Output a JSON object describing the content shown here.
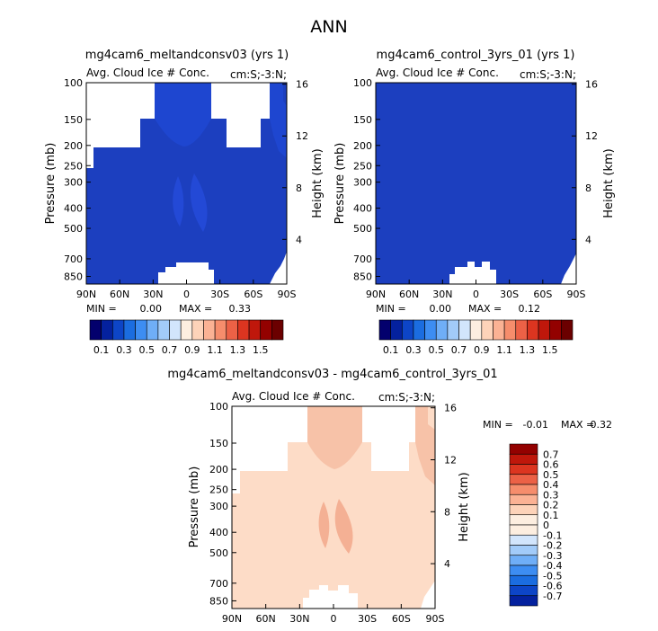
{
  "title": "ANN",
  "colors": {
    "deep_blue": "#1c3fbf",
    "blue_mid": "#1a30a8",
    "peach": "#fddcc7",
    "salmon": "#f7b49a"
  },
  "chart_data": [
    {
      "type": "heatmap",
      "title": "mg4cam6_meltandconsv03 (yrs 1)",
      "subtitle_left": "Avg. Cloud Ice # Conc.",
      "subtitle_right": "cm:S;-3:N;",
      "ylabel": "Pressure (mb)",
      "ylabel_right": "Height (km)",
      "x_ticks": [
        "90N",
        "60N",
        "30N",
        "0",
        "30S",
        "60S",
        "90S"
      ],
      "y_ticks": [
        "100",
        "150",
        "200",
        "250",
        "300",
        "400",
        "500",
        "700",
        "850"
      ],
      "y2_ticks": [
        "16",
        "12",
        "8",
        "4"
      ],
      "min_label": "MIN =",
      "min_value": "0.00",
      "max_label": "MAX =",
      "max_value": "0.33",
      "field_value_range": [
        0.0,
        0.33
      ]
    },
    {
      "type": "heatmap",
      "title": "mg4cam6_control_3yrs_01 (yrs 1)",
      "subtitle_left": "Avg. Cloud Ice # Conc.",
      "subtitle_right": "cm:S;-3:N;",
      "ylabel": "Pressure (mb)",
      "ylabel_right": "Height (km)",
      "x_ticks": [
        "90N",
        "60N",
        "30N",
        "0",
        "30S",
        "60S",
        "90S"
      ],
      "y_ticks": [
        "100",
        "150",
        "200",
        "250",
        "300",
        "400",
        "500",
        "700",
        "850"
      ],
      "y2_ticks": [
        "16",
        "12",
        "8",
        "4"
      ],
      "min_label": "MIN =",
      "min_value": "0.00",
      "max_label": "MAX =",
      "max_value": "0.12",
      "field_value_range": [
        0.0,
        0.12
      ]
    },
    {
      "type": "heatmap",
      "title": "mg4cam6_meltandconsv03 - mg4cam6_control_3yrs_01",
      "subtitle_left": "Avg. Cloud Ice # Conc.",
      "subtitle_right": "cm:S;-3:N;",
      "ylabel": "Pressure (mb)",
      "ylabel_right": "Height (km)",
      "x_ticks": [
        "90N",
        "60N",
        "30N",
        "0",
        "30S",
        "60S",
        "90S"
      ],
      "y_ticks": [
        "100",
        "150",
        "200",
        "250",
        "300",
        "400",
        "500",
        "700",
        "850"
      ],
      "y2_ticks": [
        "16",
        "12",
        "8",
        "4"
      ],
      "min_label": "MIN =",
      "min_value": "-0.01",
      "max_label": "MAX =",
      "max_value": "0.32",
      "field_value_range": [
        -0.01,
        0.32
      ]
    }
  ],
  "colorbar_main": {
    "orientation": "horizontal",
    "labels": [
      "0.1",
      "0.3",
      "0.5",
      "0.7",
      "0.9",
      "1.1",
      "1.3",
      "1.5"
    ],
    "colors": [
      "#03006d",
      "#04219e",
      "#0d45c7",
      "#1b6de0",
      "#3d8df2",
      "#6faef7",
      "#a2cbf9",
      "#d2e5fc",
      "#fdeee0",
      "#fdd3b9",
      "#fbb294",
      "#f68d6c",
      "#ec6146",
      "#dc3520",
      "#bf170b",
      "#930100",
      "#6b0000"
    ]
  },
  "colorbar_diff": {
    "orientation": "vertical",
    "labels": [
      "0.7",
      "0.6",
      "0.5",
      "0.4",
      "0.3",
      "0.2",
      "0.1",
      "0",
      "-0.1",
      "-0.2",
      "-0.3",
      "-0.4",
      "-0.5",
      "-0.6",
      "-0.7"
    ],
    "colors": [
      "#930100",
      "#bf170b",
      "#dc3520",
      "#ec6146",
      "#f68d6c",
      "#fbb294",
      "#fdd3b9",
      "#fdeee0",
      "#fdeee0",
      "#d2e5fc",
      "#a2cbf9",
      "#6faef7",
      "#3d8df2",
      "#1b6de0",
      "#0d45c7",
      "#04219e"
    ]
  }
}
